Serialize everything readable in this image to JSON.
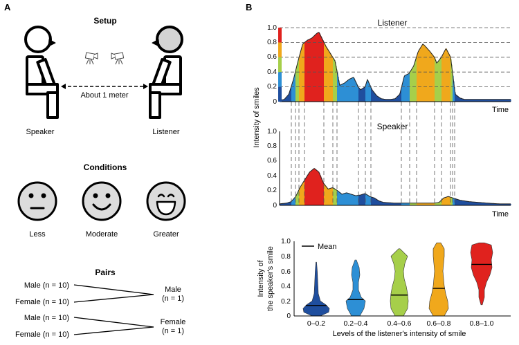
{
  "panel_a": {
    "label": "A",
    "setup": {
      "title": "Setup",
      "speaker": "Speaker",
      "listener": "Listener",
      "distance": "About 1 meter"
    },
    "conditions": {
      "title": "Conditions",
      "faces": [
        {
          "label": "Less",
          "expression": "neutral"
        },
        {
          "label": "Moderate",
          "expression": "smile"
        },
        {
          "label": "Greater",
          "expression": "laugh"
        }
      ]
    },
    "pairs": {
      "title": "Pairs",
      "groups": [
        {
          "left": [
            "Male (n = 10)",
            "Female (n = 10)"
          ],
          "right": [
            "Male",
            "(n = 1)"
          ]
        },
        {
          "left": [
            "Male (n = 10)",
            "Female (n = 10)"
          ],
          "right": [
            "Female",
            "(n = 1)"
          ]
        }
      ]
    }
  },
  "panel_b": {
    "label": "B",
    "colors": {
      "level_1": "#1f4e9e",
      "level_2": "#2d8fd5",
      "level_3": "#a6cf4a",
      "level_4": "#f0a81c",
      "level_5": "#e0221e"
    },
    "timeseries": {
      "ylabel": "Intensity of smiles",
      "xlabel": "Time",
      "listener_title": "Listener",
      "speaker_title": "Speaker",
      "listener_yticks": [
        "0",
        "0.2",
        "0.4",
        "0.6",
        "0.8",
        "1.0"
      ],
      "speaker_yticks": [
        "0",
        "0.2",
        "0.4",
        "0.6",
        "0.8",
        "1.0"
      ],
      "listener_thresholds": [
        0.2,
        0.4,
        0.6,
        0.8
      ]
    },
    "violin": {
      "ylabel_line1": "Intensity of",
      "ylabel_line2": "the speaker's smile",
      "xlabel": "Levels of the listener's intensity of smile",
      "legend": "Mean",
      "yticks": [
        "0",
        "0.2",
        "0.4",
        "0.6",
        "0.8",
        "1.0"
      ],
      "categories": [
        "0–0.2",
        "0.2–0.4",
        "0.4–0.6",
        "0.6–0.8",
        "0.8–1.0"
      ]
    }
  },
  "chart_data": [
    {
      "type": "area",
      "title": "Listener",
      "ylabel": "Intensity of smiles",
      "xlabel": "Time",
      "ylim": [
        0,
        1.0
      ],
      "x": [
        0,
        2,
        4,
        6,
        8,
        10,
        12,
        14,
        16,
        17,
        20,
        24,
        26,
        28,
        30,
        32,
        34,
        35,
        37,
        38,
        40,
        42,
        44,
        46,
        48,
        50,
        52,
        54,
        56,
        58,
        60,
        62,
        63,
        65,
        67,
        68,
        70,
        72,
        74,
        76,
        78,
        80,
        82,
        84,
        86,
        88,
        90,
        92,
        94,
        96,
        98,
        100
      ],
      "y": [
        0.02,
        0.03,
        0.1,
        0.3,
        0.55,
        0.78,
        0.83,
        0.86,
        0.92,
        0.94,
        0.75,
        0.55,
        0.22,
        0.25,
        0.3,
        0.33,
        0.2,
        0.16,
        0.2,
        0.3,
        0.16,
        0.08,
        0.04,
        0.03,
        0.03,
        0.04,
        0.1,
        0.35,
        0.38,
        0.48,
        0.68,
        0.78,
        0.75,
        0.68,
        0.6,
        0.52,
        0.6,
        0.72,
        0.6,
        0.1,
        0.05,
        0.03,
        0.03,
        0.03,
        0.03,
        0.03,
        0.03,
        0.03,
        0.03,
        0.03,
        0.03,
        0.03
      ]
    },
    {
      "type": "area",
      "title": "Speaker",
      "xlabel": "Time",
      "ylim": [
        0,
        1.0
      ],
      "x": [
        0,
        3,
        5,
        7,
        9,
        11,
        13,
        15,
        17,
        19,
        21,
        23,
        25,
        27,
        29,
        31,
        33,
        35,
        37,
        39,
        41,
        43,
        45,
        50,
        55,
        60,
        65,
        67,
        69,
        71,
        73,
        75,
        78,
        82,
        86,
        90,
        95,
        100
      ],
      "y": [
        0.02,
        0.03,
        0.05,
        0.12,
        0.25,
        0.35,
        0.45,
        0.5,
        0.45,
        0.3,
        0.22,
        0.24,
        0.2,
        0.15,
        0.17,
        0.15,
        0.13,
        0.14,
        0.16,
        0.12,
        0.1,
        0.06,
        0.04,
        0.03,
        0.03,
        0.03,
        0.03,
        0.03,
        0.04,
        0.1,
        0.12,
        0.1,
        0.07,
        0.05,
        0.04,
        0.03,
        0.02,
        0.02
      ]
    },
    {
      "type": "violin",
      "ylabel": "Intensity of the speaker's smile",
      "xlabel": "Levels of the listener's intensity of smile",
      "categories": [
        "0–0.2",
        "0.2–0.4",
        "0.4–0.6",
        "0.6–0.8",
        "0.8–1.0"
      ],
      "ylim": [
        0,
        1.0
      ],
      "series": [
        {
          "category": "0–0.2",
          "mean": 0.14,
          "range": [
            0.0,
            0.72
          ],
          "color": "#1f4e9e"
        },
        {
          "category": "0.2–0.4",
          "mean": 0.22,
          "range": [
            0.0,
            0.75
          ],
          "color": "#2d8fd5"
        },
        {
          "category": "0.4–0.6",
          "mean": 0.28,
          "range": [
            0.0,
            0.9
          ],
          "color": "#a6cf4a"
        },
        {
          "category": "0.6–0.8",
          "mean": 0.37,
          "range": [
            0.0,
            0.98
          ],
          "color": "#f0a81c"
        },
        {
          "category": "0.8–1.0",
          "mean": 0.69,
          "range": [
            0.15,
            0.98
          ],
          "color": "#e0221e"
        }
      ]
    }
  ]
}
